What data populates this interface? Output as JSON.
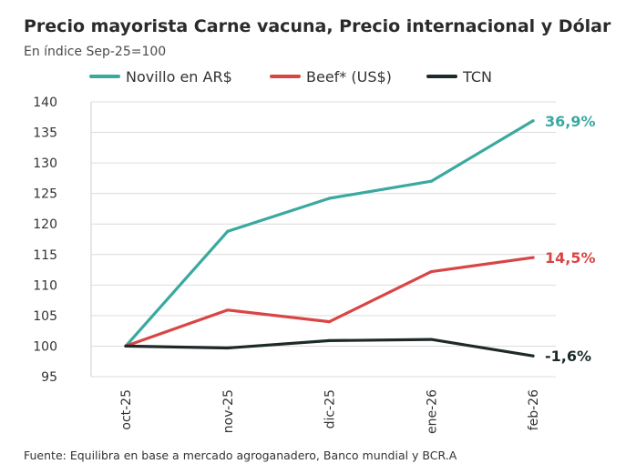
{
  "chart_data": {
    "type": "line",
    "title": "Precio mayorista Carne vacuna, Precio internacional  y Dólar",
    "subtitle": "En índice Sep-25=100",
    "source": "Fuente: Equilibra en base a mercado agroganadero, Banco mundial  y BCR.A",
    "categories": [
      "oct-25",
      "nov-25",
      "dic-25",
      "ene-26",
      "feb-26"
    ],
    "ylim": [
      95,
      140
    ],
    "yticks": [
      95,
      100,
      105,
      110,
      115,
      120,
      125,
      130,
      135,
      140
    ],
    "grid": true,
    "legend_position": "top",
    "series": [
      {
        "name": "Novillo en  AR$",
        "color": "#3aa99f",
        "values": [
          100,
          118.8,
          124.2,
          127,
          136.9
        ],
        "end_label": "36,9%"
      },
      {
        "name": "Beef* (US$)",
        "color": "#d94545",
        "values": [
          100,
          105.9,
          104,
          112.2,
          114.5
        ],
        "end_label": "14,5%"
      },
      {
        "name": "TCN",
        "color": "#1e2a2a",
        "values": [
          100,
          99.7,
          100.9,
          101.1,
          98.4
        ],
        "end_label": "-1,6%"
      }
    ]
  }
}
